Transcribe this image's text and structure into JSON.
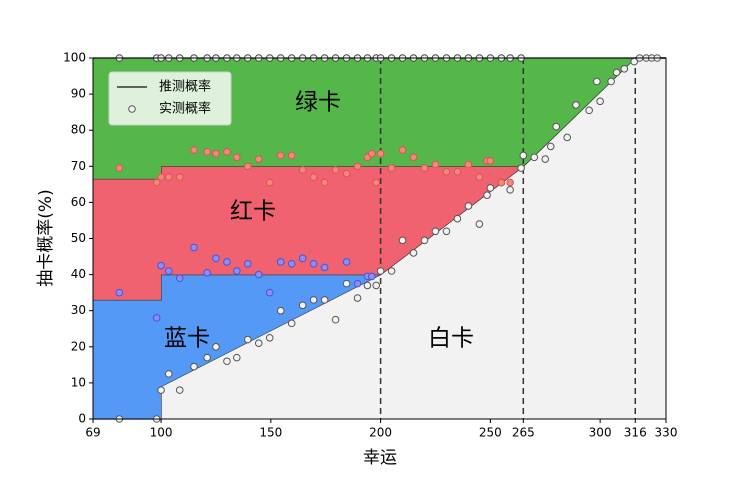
{
  "chart_data": {
    "type": "stacked_area",
    "xlabel": "幸运",
    "ylabel": "抽卡概率(%)",
    "xlim": [
      69,
      330
    ],
    "ylim": [
      0,
      100
    ],
    "xticks": [
      69,
      100,
      150,
      200,
      250,
      265,
      300,
      316,
      330
    ],
    "yticks": [
      0,
      10,
      20,
      30,
      40,
      50,
      60,
      70,
      80,
      90,
      100
    ],
    "vlines": [
      200,
      265,
      316
    ],
    "line_name": "推测概率",
    "line_color": "#333333",
    "legend": "upper left",
    "x": [
      69,
      100,
      100,
      200,
      265,
      316,
      330
    ],
    "series": [
      {
        "name": "白卡",
        "color": "#f2f2f2",
        "values": [
          0,
          0,
          9,
          40,
          70,
          100,
          100
        ]
      },
      {
        "name": "蓝卡",
        "color": "#5599f7",
        "values": [
          33,
          33,
          31,
          0,
          0,
          0,
          0
        ]
      },
      {
        "name": "红卡",
        "color": "#f06270",
        "values": [
          33.5,
          33.5,
          30,
          30,
          0,
          0,
          0
        ]
      },
      {
        "name": "绿卡",
        "color": "#55b74a",
        "values": [
          33.5,
          33.5,
          30,
          30,
          30,
          0,
          0
        ]
      }
    ],
    "scatter": {
      "name": "实测概率",
      "groups": [
        {
          "color": "#f2f2f2",
          "edgecolor": "#555555",
          "x": [
            81,
            98,
            100,
            103.5,
            108.5,
            115,
            121,
            125,
            130,
            134.5,
            139.5,
            144.5,
            149.5,
            154.5,
            159.5,
            164.5,
            169.5,
            174.5,
            179.5,
            184.5,
            189.5,
            194,
            198,
            200,
            205,
            210,
            215,
            220,
            225,
            230,
            235,
            240,
            245,
            248.5,
            250,
            255,
            259,
            264,
            265,
            270,
            275,
            277.5,
            280,
            285,
            289,
            295,
            298.5,
            300,
            305,
            307.5,
            311,
            315.5,
            318,
            321,
            323.5,
            326
          ],
          "y": [
            0,
            0,
            8,
            12.5,
            8,
            14.5,
            17,
            20,
            16,
            17,
            22,
            21,
            22.5,
            30,
            26.5,
            31.5,
            33,
            33,
            27.5,
            37.5,
            33.5,
            37,
            37,
            41,
            41,
            49.5,
            46,
            49.5,
            52,
            52,
            55.5,
            59,
            54,
            62,
            64,
            65.5,
            63.5,
            69.5,
            73,
            72.5,
            72,
            75.5,
            81,
            78,
            87,
            85.5,
            93.5,
            88,
            93.5,
            96,
            97,
            99,
            100,
            100,
            100,
            100
          ]
        },
        {
          "color": "#8f8cf2",
          "edgecolor": "#4455dd",
          "x": [
            81,
            98,
            100,
            103.5,
            108.5,
            115,
            121,
            125,
            130,
            134.5,
            139.5,
            144.5,
            149.5,
            154.5,
            159.5,
            164.5,
            169.5,
            174.5,
            184.5,
            189.5,
            194,
            196
          ],
          "y": [
            35,
            28,
            42.5,
            41,
            39,
            47.5,
            40.5,
            44.5,
            43.5,
            41,
            43,
            40,
            35,
            43.5,
            43,
            44.5,
            43,
            42,
            43.5,
            37.5,
            39.5,
            39.5
          ]
        },
        {
          "color": "#f08a78",
          "edgecolor": "#e0505a",
          "x": [
            81,
            98,
            100,
            103.5,
            108.5,
            115,
            121,
            125,
            130,
            134.5,
            139.5,
            144.5,
            149.5,
            154.5,
            159.5,
            164.5,
            169.5,
            174.5,
            179.5,
            184.5,
            189.5,
            194,
            196,
            198,
            200,
            205,
            210,
            215,
            220,
            225,
            230,
            235,
            240,
            245,
            248.5,
            250,
            255,
            259
          ],
          "y": [
            69.5,
            65.5,
            67,
            67,
            67,
            74.5,
            74,
            73.5,
            74,
            72.5,
            70,
            72,
            65.5,
            73,
            73,
            69,
            67,
            65.5,
            69,
            68,
            70,
            72.5,
            73.5,
            65.5,
            73.5,
            69.5,
            74.5,
            72.5,
            69.5,
            70.5,
            68.5,
            68.5,
            70.5,
            67,
            71.5,
            71.5,
            65.5,
            65.5
          ]
        },
        {
          "color": "#f2f2f2",
          "edgecolor": "#444444",
          "x": [
            81,
            98,
            100,
            103.5,
            108.5,
            115,
            121,
            125,
            130,
            134.5,
            139.5,
            144.5,
            149.5,
            154.5,
            159.5,
            164.5,
            169.5,
            174.5,
            179.5,
            184.5,
            189.5,
            194,
            198,
            200,
            205,
            210,
            215,
            220,
            225,
            230,
            235,
            240,
            245,
            250,
            255,
            259,
            264
          ],
          "y": [
            100,
            100,
            100,
            100,
            100,
            100,
            100,
            100,
            100,
            100,
            100,
            100,
            100,
            100,
            100,
            100,
            100,
            100,
            100,
            100,
            100,
            100,
            100,
            100,
            100,
            100,
            100,
            100,
            100,
            100,
            100,
            100,
            100,
            100,
            100,
            100,
            100
          ]
        }
      ]
    }
  }
}
